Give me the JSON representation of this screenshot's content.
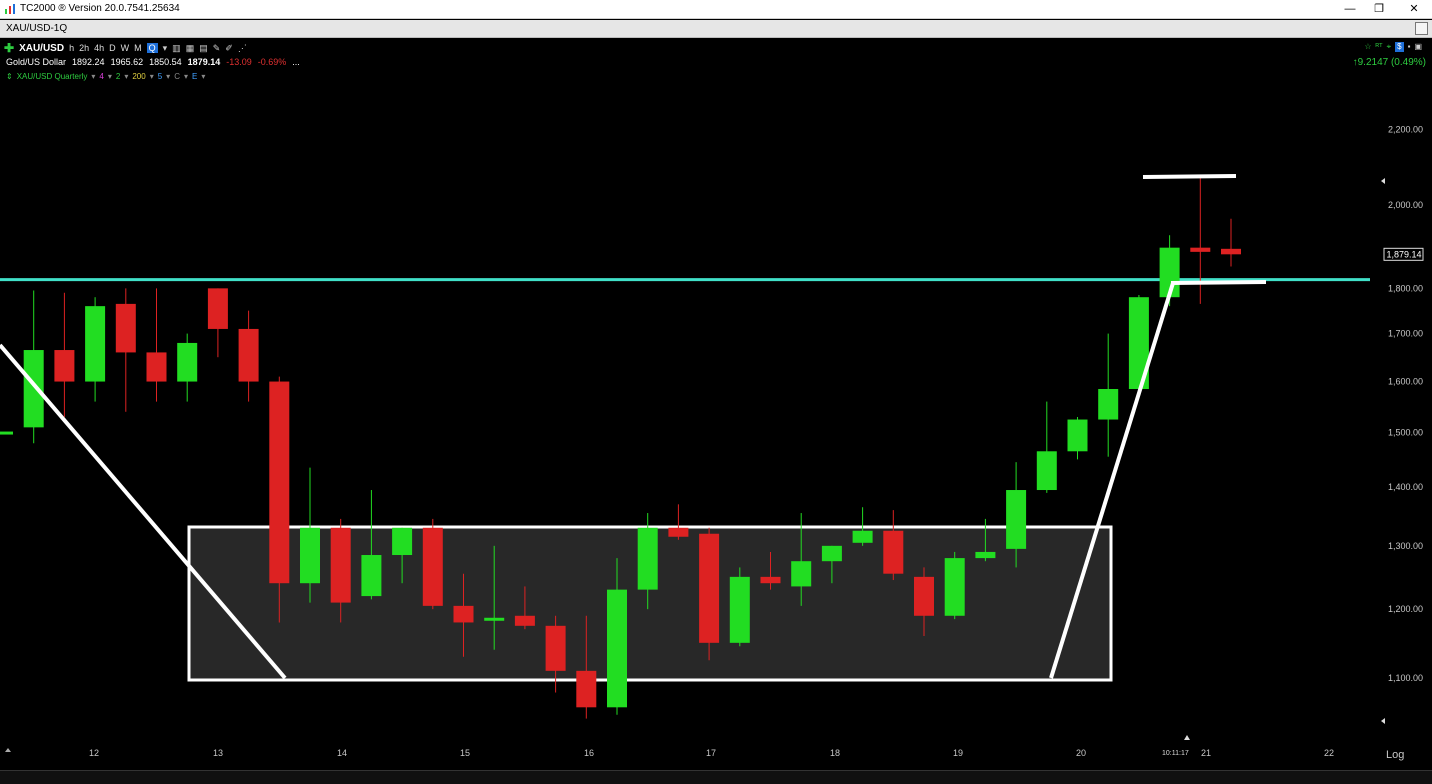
{
  "window": {
    "title": "TC2000 ® Version 20.0.7541.25634",
    "minimize": "—",
    "restore": "❐",
    "close": "✕"
  },
  "document": {
    "title": "XAU/USD-1Q"
  },
  "toolbar": {
    "symbol": "XAU/USD",
    "timeframes": [
      "h",
      "2h",
      "4h",
      "D",
      "W",
      "M",
      "Q"
    ],
    "active_timeframe": "Q"
  },
  "quote": {
    "name": "Gold/US Dollar",
    "open": "1892.24",
    "high": "1965.62",
    "low": "1850.54",
    "last": "1879.14",
    "change": "-13.09",
    "change_pct": "-0.69%",
    "more": "..."
  },
  "indicators": {
    "title": "XAU/USD Quarterly",
    "items": [
      "4",
      "2",
      "200",
      "5",
      "C",
      "E"
    ]
  },
  "right_status": {
    "value": "9.2147 (0.49%)"
  },
  "chart_data": {
    "type": "candlestick",
    "symbol": "XAU/USD",
    "interval": "Quarterly",
    "scale": "Log",
    "y_ticks": [
      "2,200.00",
      "2,000.00",
      "1,800.00",
      "1,700.00",
      "1,600.00",
      "1,500.00",
      "1,400.00",
      "1,300.00",
      "1,200.00",
      "1,100.00"
    ],
    "x_ticks": [
      "12",
      "13",
      "14",
      "15",
      "16",
      "17",
      "18",
      "19",
      "20",
      "21",
      "22"
    ],
    "last_price_label": "1,879.14",
    "time_label": "10:11:17",
    "scale_mode": "Log",
    "horizontal_line_price": 1820,
    "colors": {
      "up": "#22dd22",
      "down": "#dd2222",
      "hline": "#40e0c8",
      "annotation": "#ffffff",
      "box_fill": "#282828"
    },
    "candles": [
      {
        "q": "2011Q4",
        "o": 1500,
        "h": 1500,
        "l": 1500,
        "c": 1502
      },
      {
        "q": "2012Q1",
        "o": 1510,
        "h": 1795,
        "l": 1480,
        "c": 1665
      },
      {
        "q": "2012Q2",
        "o": 1665,
        "h": 1790,
        "l": 1530,
        "c": 1600
      },
      {
        "q": "2012Q3",
        "o": 1600,
        "h": 1780,
        "l": 1560,
        "c": 1760
      },
      {
        "q": "2012Q4",
        "o": 1765,
        "h": 1800,
        "l": 1540,
        "c": 1660
      },
      {
        "q": "2013Q1",
        "o": 1660,
        "h": 1800,
        "l": 1560,
        "c": 1600
      },
      {
        "q": "2013Q2",
        "o": 1600,
        "h": 1700,
        "l": 1560,
        "c": 1680
      },
      {
        "q": "2013Q3",
        "o": 1800,
        "h": 1800,
        "l": 1650,
        "c": 1710
      },
      {
        "q": "2013Q4",
        "o": 1710,
        "h": 1750,
        "l": 1560,
        "c": 1600
      },
      {
        "q": "2014Q1",
        "o": 1600,
        "h": 1610,
        "l": 1180,
        "c": 1240
      },
      {
        "q": "2014Q2",
        "o": 1240,
        "h": 1435,
        "l": 1210,
        "c": 1330
      },
      {
        "q": "2014Q3",
        "o": 1330,
        "h": 1345,
        "l": 1180,
        "c": 1210
      },
      {
        "q": "2014Q4",
        "o": 1220,
        "h": 1395,
        "l": 1215,
        "c": 1285
      },
      {
        "q": "2015Q1",
        "o": 1285,
        "h": 1330,
        "l": 1240,
        "c": 1330
      },
      {
        "q": "2015Q2",
        "o": 1330,
        "h": 1345,
        "l": 1200,
        "c": 1205
      },
      {
        "q": "2015Q3",
        "o": 1205,
        "h": 1255,
        "l": 1130,
        "c": 1180
      },
      {
        "q": "2015Q4",
        "o": 1183,
        "h": 1300,
        "l": 1140,
        "c": 1187
      },
      {
        "q": "2016Q1",
        "o": 1190,
        "h": 1235,
        "l": 1170,
        "c": 1175
      },
      {
        "q": "2016Q2",
        "o": 1175,
        "h": 1190,
        "l": 1080,
        "c": 1110
      },
      {
        "q": "2016Q3",
        "o": 1110,
        "h": 1190,
        "l": 1045,
        "c": 1060
      },
      {
        "q": "2016Q4",
        "o": 1060,
        "h": 1280,
        "l": 1050,
        "c": 1230
      },
      {
        "q": "2017Q1",
        "o": 1230,
        "h": 1355,
        "l": 1200,
        "c": 1330
      },
      {
        "q": "2017Q2",
        "o": 1330,
        "h": 1370,
        "l": 1310,
        "c": 1315
      },
      {
        "q": "2017Q3",
        "o": 1320,
        "h": 1330,
        "l": 1125,
        "c": 1150
      },
      {
        "q": "2017Q4",
        "o": 1150,
        "h": 1265,
        "l": 1145,
        "c": 1250
      },
      {
        "q": "2018Q1",
        "o": 1250,
        "h": 1290,
        "l": 1230,
        "c": 1240
      },
      {
        "q": "2018Q2",
        "o": 1235,
        "h": 1355,
        "l": 1205,
        "c": 1275
      },
      {
        "q": "2018Q3",
        "o": 1275,
        "h": 1300,
        "l": 1240,
        "c": 1300
      },
      {
        "q": "2018Q4",
        "o": 1305,
        "h": 1365,
        "l": 1300,
        "c": 1325
      },
      {
        "q": "2019Q1",
        "o": 1325,
        "h": 1360,
        "l": 1245,
        "c": 1255
      },
      {
        "q": "2019Q2",
        "o": 1250,
        "h": 1265,
        "l": 1160,
        "c": 1190
      },
      {
        "q": "2019Q3",
        "o": 1190,
        "h": 1290,
        "l": 1185,
        "c": 1280
      },
      {
        "q": "2019Q4",
        "o": 1280,
        "h": 1345,
        "l": 1275,
        "c": 1290
      },
      {
        "q": "2020Q1",
        "o": 1295,
        "h": 1445,
        "l": 1265,
        "c": 1395
      },
      {
        "q": "2020Q2",
        "o": 1395,
        "h": 1560,
        "l": 1390,
        "c": 1465
      },
      {
        "q": "2020Q3",
        "o": 1465,
        "h": 1530,
        "l": 1450,
        "c": 1525
      },
      {
        "q": "2020Q4",
        "o": 1525,
        "h": 1700,
        "l": 1455,
        "c": 1585
      },
      {
        "q": "2021Q1",
        "o": 1585,
        "h": 1785,
        "l": 1575,
        "c": 1780
      },
      {
        "q": "2021Q2",
        "o": 1780,
        "h": 1925,
        "l": 1760,
        "c": 1895
      },
      {
        "q": "2021Q3",
        "o": 1895,
        "h": 2075,
        "l": 1765,
        "c": 1885
      },
      {
        "q": "2021Q4",
        "o": 1892.24,
        "h": 1965.62,
        "l": 1850.54,
        "c": 1879.14
      }
    ]
  }
}
